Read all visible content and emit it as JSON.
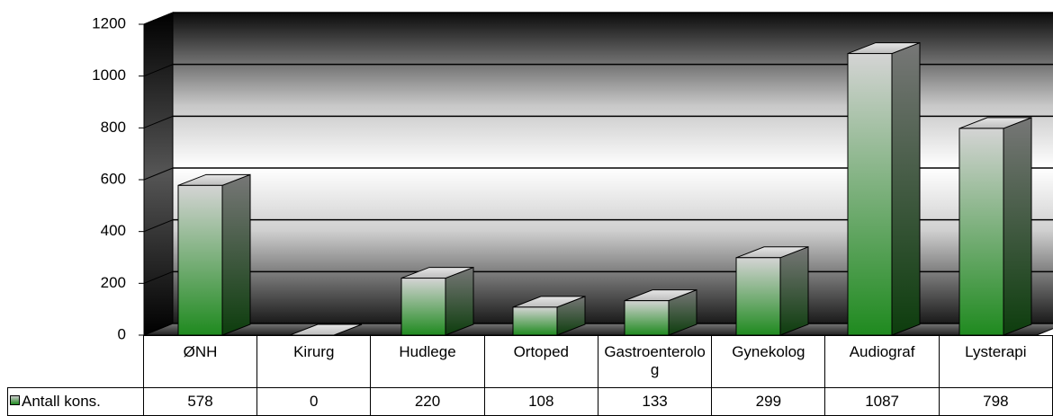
{
  "chart_data": {
    "type": "bar3d",
    "categories": [
      "ØNH",
      "Kirurg",
      "Hudlege",
      "Ortoped",
      "Gastroenterolog",
      "Gynekolog",
      "Audiograf",
      "Lysterapi"
    ],
    "series": [
      {
        "name": "Antall kons.",
        "color": "#1f8a1f",
        "values": [
          578,
          0,
          220,
          108,
          133,
          299,
          1087,
          798
        ]
      }
    ],
    "ylim": [
      0,
      1200
    ],
    "yticks": [
      0,
      200,
      400,
      600,
      800,
      1000,
      1200
    ],
    "grid": true,
    "data_table": true
  }
}
